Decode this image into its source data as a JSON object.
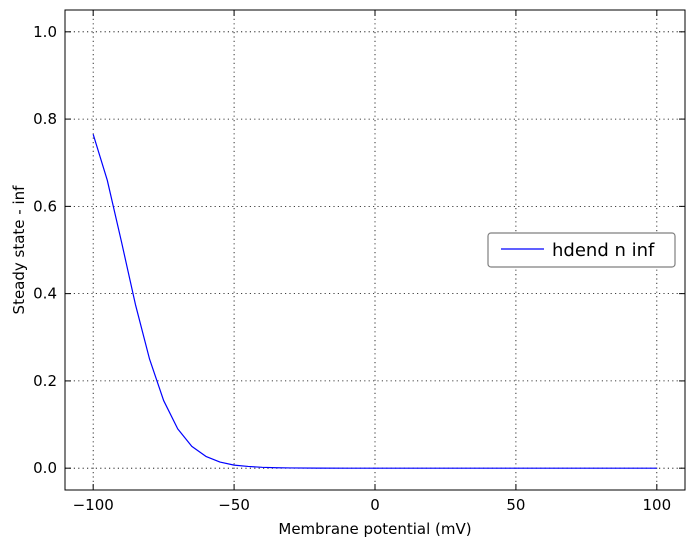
{
  "chart_data": {
    "type": "line",
    "title": "",
    "xlabel": "Membrane potential (mV)",
    "ylabel": "Steady state - inf",
    "xlim": [
      -110,
      110
    ],
    "ylim": [
      -0.05,
      1.05
    ],
    "xticks": [
      -100,
      -50,
      0,
      50,
      100
    ],
    "xtick_labels": [
      "−100",
      "−50",
      "0",
      "50",
      "100"
    ],
    "yticks": [
      0.0,
      0.2,
      0.4,
      0.6,
      0.8,
      1.0
    ],
    "ytick_labels": [
      "0.0",
      "0.2",
      "0.4",
      "0.6",
      "0.8",
      "1.0"
    ],
    "grid": true,
    "legend_position": "center-right",
    "series": [
      {
        "name": "hdend n inf",
        "color": "#0000ff",
        "x": [
          -100,
          -95,
          -90,
          -85,
          -80,
          -75,
          -70,
          -65,
          -60,
          -55,
          -50,
          -45,
          -40,
          -35,
          -30,
          -20,
          -10,
          0,
          25,
          50,
          75,
          100
        ],
        "y": [
          0.765,
          0.66,
          0.52,
          0.375,
          0.25,
          0.155,
          0.09,
          0.05,
          0.027,
          0.014,
          0.007,
          0.004,
          0.002,
          0.001,
          0.0005,
          0.0001,
          0.0,
          0.0,
          0.0,
          0.0,
          0.0,
          0.0
        ]
      }
    ]
  }
}
